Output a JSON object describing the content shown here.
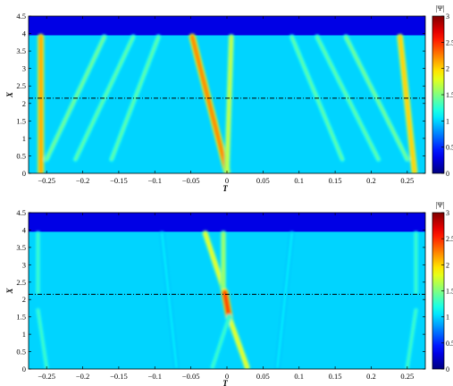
{
  "colors": {
    "background": "#ffffff",
    "field_base": "#2d9ff0",
    "top_band": "#00008f",
    "dash_line": "#000000"
  },
  "chart_data": [
    {
      "type": "heatmap",
      "panel": "top",
      "xlabel": "T",
      "ylabel": "X",
      "xlim": [
        -0.275,
        0.275
      ],
      "ylim": [
        0,
        4.5
      ],
      "x_ticks": [
        -0.25,
        -0.2,
        -0.15,
        -0.1,
        -0.05,
        0,
        0.05,
        0.1,
        0.15,
        0.2,
        0.25
      ],
      "x_tick_labels": [
        "−0.25",
        "−0.2",
        "−0.15",
        "−0.1",
        "−0.05",
        "0",
        "0.05",
        "0.1",
        "0.15",
        "0.2",
        "0.25"
      ],
      "y_ticks": [
        0,
        0.5,
        1,
        1.5,
        2,
        2.5,
        3,
        3.5,
        4,
        4.5
      ],
      "y_tick_labels": [
        "0",
        "0.5",
        "1",
        "1.5",
        "2",
        "2.5",
        "3",
        "3.5",
        "4",
        "4.5"
      ],
      "background_level": 1.0,
      "upper_band_start": 3.95,
      "upper_band_level": 0.3,
      "dashed_line_y": 2.15,
      "colorbar": {
        "label": "|Ψ|",
        "range": [
          0,
          3
        ],
        "ticks": [
          0,
          0.5,
          1,
          1.5,
          2,
          2.5,
          3
        ],
        "tick_labels": [
          "0",
          "0.5",
          "1",
          "1.5",
          "2",
          "2.5",
          "3"
        ]
      },
      "features": [
        {
          "x0": -0.258,
          "x1": -0.258,
          "y0": 3.9,
          "y1": 0.05,
          "level": 2.1
        },
        {
          "x0": -0.048,
          "x1": 0.0,
          "y0": 3.9,
          "y1": 0.05,
          "level": 2.2
        },
        {
          "x0": 0.006,
          "x1": 0.0,
          "y0": 3.9,
          "y1": 0.05,
          "level": 1.7
        },
        {
          "x0": 0.24,
          "x1": 0.26,
          "y0": 3.9,
          "y1": 0.05,
          "level": 2.0
        },
        {
          "x0": -0.17,
          "x1": -0.25,
          "y0": 3.9,
          "y1": 0.4,
          "level": 1.45
        },
        {
          "x0": -0.13,
          "x1": -0.21,
          "y0": 3.9,
          "y1": 0.4,
          "level": 1.4
        },
        {
          "x0": -0.095,
          "x1": -0.16,
          "y0": 3.9,
          "y1": 0.4,
          "level": 1.4
        },
        {
          "x0": 0.09,
          "x1": 0.16,
          "y0": 3.9,
          "y1": 0.4,
          "level": 1.4
        },
        {
          "x0": 0.125,
          "x1": 0.21,
          "y0": 3.9,
          "y1": 0.4,
          "level": 1.4
        },
        {
          "x0": 0.165,
          "x1": 0.25,
          "y0": 3.9,
          "y1": 0.4,
          "level": 1.45
        }
      ]
    },
    {
      "type": "heatmap",
      "panel": "bottom",
      "xlabel": "T",
      "ylabel": "X",
      "xlim": [
        -0.275,
        0.275
      ],
      "ylim": [
        0,
        4.5
      ],
      "x_ticks": [
        -0.25,
        -0.2,
        -0.15,
        -0.1,
        -0.05,
        0,
        0.05,
        0.1,
        0.15,
        0.2,
        0.25
      ],
      "x_tick_labels": [
        "−0.25",
        "−0.2",
        "−0.15",
        "−0.1",
        "−0.05",
        "0",
        "0.05",
        "0.1",
        "0.15",
        "0.2",
        "0.25"
      ],
      "y_ticks": [
        0,
        0.5,
        1,
        1.5,
        2,
        2.5,
        3,
        3.5,
        4,
        4.5
      ],
      "y_tick_labels": [
        "0",
        "0.5",
        "1",
        "1.5",
        "2",
        "2.5",
        "3",
        "3.5",
        "4",
        "4.5"
      ],
      "background_level": 1.0,
      "upper_band_start": 3.95,
      "upper_band_level": 0.3,
      "dashed_line_y": 2.15,
      "colorbar": {
        "label": "|Ψ|",
        "range": [
          0,
          3
        ],
        "ticks": [
          0,
          0.5,
          1,
          1.5,
          2,
          2.5,
          3
        ],
        "tick_labels": [
          "0",
          "0.5",
          "1",
          "1.5",
          "2",
          "2.5",
          "3"
        ]
      },
      "features": [
        {
          "x0": -0.03,
          "x1": -0.003,
          "y0": 3.9,
          "y1": 2.2,
          "level": 1.8
        },
        {
          "x0": -0.003,
          "x1": 0.003,
          "y0": 2.2,
          "y1": 1.5,
          "level": 2.4
        },
        {
          "x0": 0.003,
          "x1": 0.028,
          "y0": 1.5,
          "y1": 0.05,
          "level": 1.8
        },
        {
          "x0": -0.005,
          "x1": -0.005,
          "y0": 3.9,
          "y1": 2.4,
          "level": 1.6
        },
        {
          "x0": 0.003,
          "x1": -0.02,
          "y0": 1.5,
          "y1": 0.05,
          "level": 1.3
        },
        {
          "x0": -0.262,
          "x1": -0.262,
          "y0": 3.9,
          "y1": 2.2,
          "level": 1.3
        },
        {
          "x0": -0.262,
          "x1": -0.25,
          "y0": 1.7,
          "y1": 0.05,
          "level": 1.3
        },
        {
          "x0": 0.262,
          "x1": 0.262,
          "y0": 3.9,
          "y1": 2.2,
          "level": 1.3
        },
        {
          "x0": 0.262,
          "x1": 0.25,
          "y0": 1.7,
          "y1": 0.05,
          "level": 1.3
        },
        {
          "x0": -0.09,
          "x1": -0.07,
          "y0": 3.9,
          "y1": 0.05,
          "level": 1.1
        },
        {
          "x0": 0.09,
          "x1": 0.07,
          "y0": 3.9,
          "y1": 0.05,
          "level": 1.1
        }
      ]
    }
  ]
}
